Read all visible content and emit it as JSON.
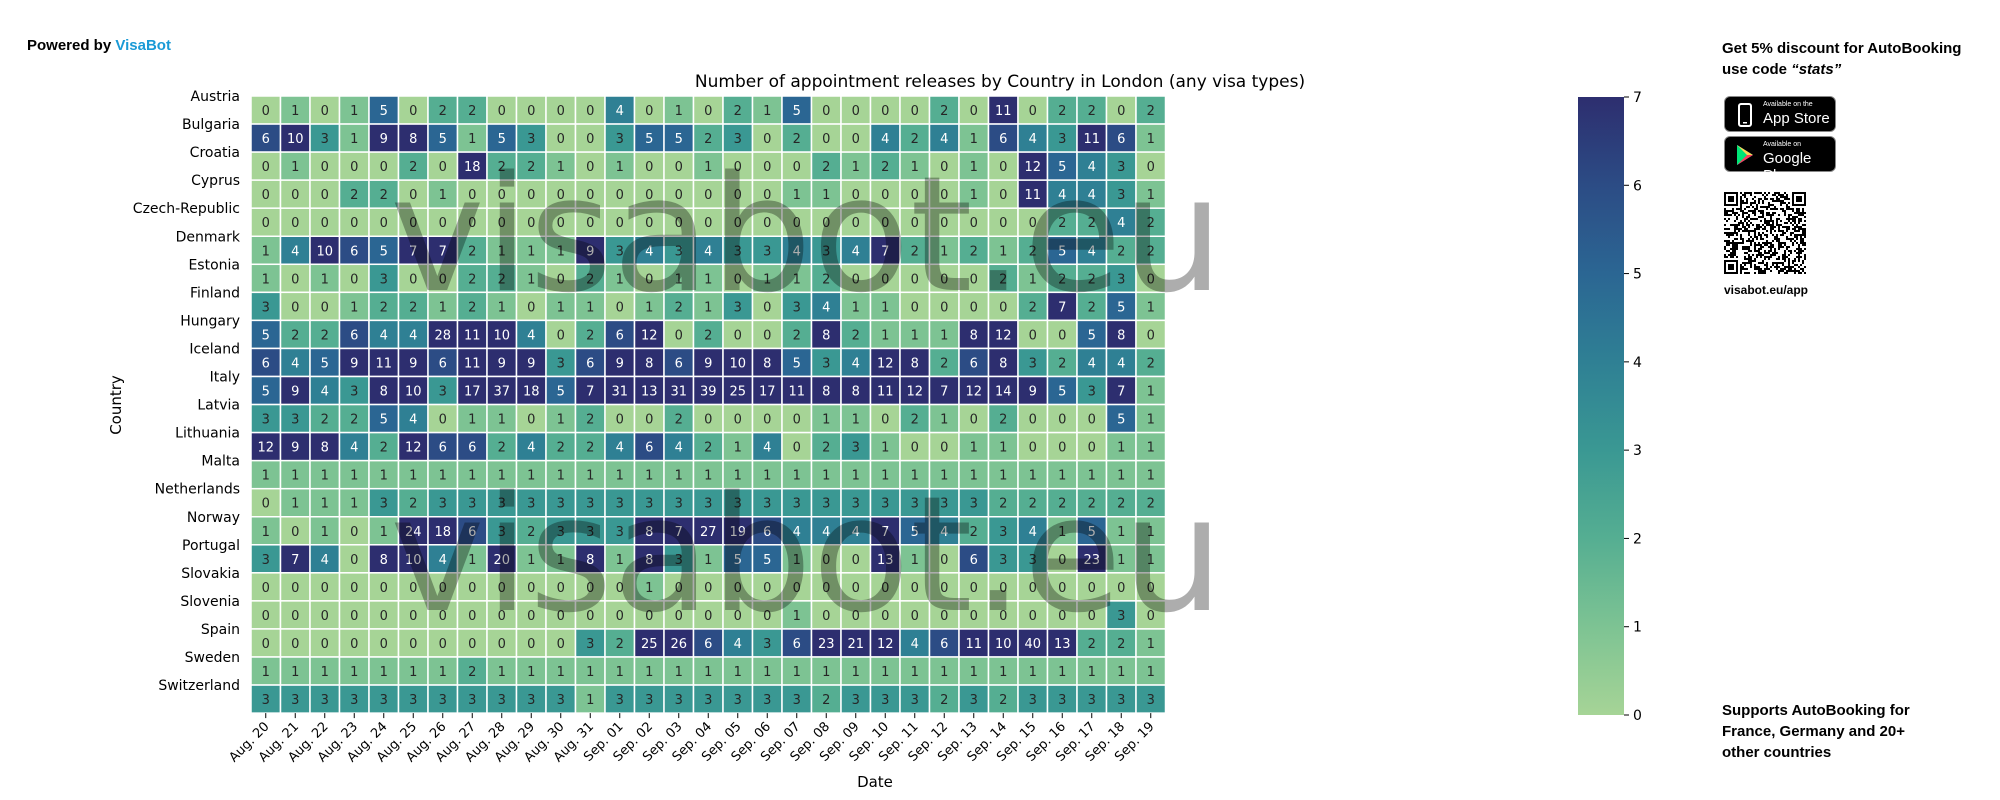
{
  "header": {
    "powered_prefix": "Powered by",
    "powered_brand": "VisaBot"
  },
  "watermark": "visabot.eu",
  "promo": {
    "line1_prefix": "Get 5% discount for ",
    "line1_bold": "AutoBooking",
    "line2_prefix": "use code ",
    "code": "“stats”",
    "appstore_small": "Available on the",
    "appstore_big": "App Store",
    "googleplay_small": "Available on",
    "googleplay_big": "Google Play",
    "qr_caption": "visabot.eu/app",
    "supports_prefix": "Supports ",
    "supports_bold": "AutoBooking",
    "supports_rest": " for France, Germany and 20+ other countries"
  },
  "colors": {
    "low": "#a6d496",
    "mid": "#2f8e94",
    "high": "#2d2e6f",
    "accent": "#1a9ad6"
  },
  "chart_data": {
    "type": "heatmap",
    "title": "Number of appointment releases by Country in London (any visa types)",
    "xlabel": "Date",
    "ylabel": "Country",
    "colorbar": {
      "min": 0,
      "max": 7,
      "ticks": [
        0,
        1,
        2,
        3,
        4,
        5,
        6,
        7
      ]
    },
    "x": [
      "Aug. 20",
      "Aug. 21",
      "Aug. 22",
      "Aug. 23",
      "Aug. 24",
      "Aug. 25",
      "Aug. 26",
      "Aug. 27",
      "Aug. 28",
      "Aug. 29",
      "Aug. 30",
      "Aug. 31",
      "Sep. 01",
      "Sep. 02",
      "Sep. 03",
      "Sep. 04",
      "Sep. 05",
      "Sep. 06",
      "Sep. 07",
      "Sep. 08",
      "Sep. 09",
      "Sep. 10",
      "Sep. 11",
      "Sep. 12",
      "Sep. 13",
      "Sep. 14",
      "Sep. 15",
      "Sep. 16",
      "Sep. 17",
      "Sep. 18",
      "Sep. 19"
    ],
    "y": [
      "Austria",
      "Bulgaria",
      "Croatia",
      "Cyprus",
      "Czech-Republic",
      "Denmark",
      "Estonia",
      "Finland",
      "Hungary",
      "Iceland",
      "Italy",
      "Latvia",
      "Lithuania",
      "Malta",
      "Netherlands",
      "Norway",
      "Portugal",
      "Slovakia",
      "Slovenia",
      "Spain",
      "Sweden",
      "Switzerland"
    ],
    "values": [
      [
        0,
        1,
        0,
        1,
        5,
        0,
        2,
        2,
        0,
        0,
        0,
        0,
        4,
        0,
        1,
        0,
        2,
        1,
        5,
        0,
        0,
        0,
        0,
        2,
        0,
        11,
        0,
        2,
        2,
        0,
        2
      ],
      [
        6,
        10,
        3,
        1,
        9,
        8,
        5,
        1,
        5,
        3,
        0,
        0,
        3,
        5,
        5,
        2,
        3,
        0,
        2,
        0,
        0,
        4,
        2,
        4,
        1,
        6,
        4,
        3,
        11,
        6,
        1
      ],
      [
        0,
        1,
        0,
        0,
        0,
        2,
        0,
        18,
        2,
        2,
        1,
        0,
        1,
        0,
        0,
        1,
        0,
        0,
        0,
        2,
        1,
        2,
        1,
        0,
        1,
        0,
        12,
        5,
        4,
        3,
        0
      ],
      [
        0,
        0,
        0,
        2,
        2,
        0,
        1,
        0,
        0,
        0,
        0,
        0,
        0,
        0,
        0,
        0,
        0,
        0,
        1,
        1,
        0,
        0,
        0,
        0,
        1,
        0,
        11,
        4,
        4,
        3,
        1
      ],
      [
        0,
        0,
        0,
        0,
        0,
        0,
        0,
        0,
        0,
        0,
        0,
        0,
        0,
        0,
        0,
        0,
        0,
        0,
        0,
        0,
        0,
        0,
        0,
        0,
        0,
        0,
        0,
        2,
        2,
        4,
        2
      ],
      [
        1,
        4,
        10,
        6,
        5,
        7,
        7,
        2,
        1,
        1,
        1,
        9,
        3,
        4,
        3,
        4,
        3,
        3,
        4,
        3,
        4,
        7,
        2,
        1,
        2,
        1,
        2,
        5,
        4,
        2,
        2
      ],
      [
        1,
        0,
        1,
        0,
        3,
        0,
        0,
        2,
        2,
        1,
        0,
        2,
        1,
        0,
        1,
        1,
        0,
        1,
        1,
        2,
        0,
        0,
        0,
        0,
        0,
        2,
        1,
        2,
        2,
        3,
        0
      ],
      [
        3,
        0,
        0,
        1,
        2,
        2,
        1,
        2,
        1,
        0,
        1,
        1,
        0,
        1,
        2,
        1,
        3,
        0,
        3,
        4,
        1,
        1,
        0,
        0,
        0,
        0,
        2,
        7,
        2,
        5,
        1
      ],
      [
        5,
        2,
        2,
        6,
        4,
        4,
        28,
        11,
        10,
        4,
        0,
        2,
        6,
        12,
        0,
        2,
        0,
        0,
        2,
        8,
        2,
        1,
        1,
        1,
        8,
        12,
        0,
        0,
        5,
        8,
        0
      ],
      [
        6,
        4,
        5,
        9,
        11,
        9,
        6,
        11,
        9,
        9,
        3,
        6,
        9,
        8,
        6,
        9,
        10,
        8,
        5,
        3,
        4,
        12,
        8,
        2,
        6,
        8,
        3,
        2,
        4,
        4,
        2
      ],
      [
        5,
        9,
        4,
        3,
        8,
        10,
        3,
        17,
        37,
        18,
        5,
        7,
        31,
        13,
        31,
        39,
        25,
        17,
        11,
        8,
        8,
        11,
        12,
        7,
        12,
        14,
        9,
        5,
        3,
        7,
        1
      ],
      [
        3,
        3,
        2,
        2,
        5,
        4,
        0,
        1,
        1,
        0,
        1,
        2,
        0,
        0,
        2,
        0,
        0,
        0,
        0,
        1,
        1,
        0,
        2,
        1,
        0,
        2,
        0,
        0,
        0,
        5,
        1
      ],
      [
        12,
        9,
        8,
        4,
        2,
        12,
        6,
        6,
        2,
        4,
        2,
        2,
        4,
        6,
        4,
        2,
        1,
        4,
        0,
        2,
        3,
        1,
        0,
        0,
        1,
        1,
        0,
        0,
        0,
        1,
        1
      ],
      [
        1,
        1,
        1,
        1,
        1,
        1,
        1,
        1,
        1,
        1,
        1,
        1,
        1,
        1,
        1,
        1,
        1,
        1,
        1,
        1,
        1,
        1,
        1,
        1,
        1,
        1,
        1,
        1,
        1,
        1,
        1
      ],
      [
        0,
        1,
        1,
        1,
        3,
        2,
        3,
        3,
        3,
        3,
        3,
        3,
        3,
        3,
        3,
        3,
        3,
        3,
        3,
        3,
        3,
        3,
        3,
        3,
        3,
        2,
        2,
        2,
        2,
        2,
        2
      ],
      [
        1,
        0,
        1,
        0,
        1,
        24,
        18,
        6,
        3,
        2,
        3,
        3,
        3,
        8,
        7,
        27,
        19,
        6,
        4,
        4,
        4,
        7,
        5,
        4,
        2,
        3,
        4,
        1,
        5,
        1,
        1
      ],
      [
        3,
        7,
        4,
        0,
        8,
        10,
        4,
        1,
        20,
        1,
        1,
        8,
        1,
        8,
        3,
        1,
        5,
        5,
        1,
        0,
        0,
        13,
        1,
        0,
        6,
        3,
        3,
        0,
        23,
        1,
        1
      ],
      [
        0,
        0,
        0,
        0,
        0,
        0,
        0,
        0,
        0,
        0,
        0,
        0,
        0,
        1,
        0,
        0,
        0,
        0,
        0,
        0,
        0,
        0,
        0,
        0,
        0,
        0,
        0,
        0,
        0,
        0,
        0
      ],
      [
        0,
        0,
        0,
        0,
        0,
        0,
        0,
        0,
        0,
        0,
        0,
        0,
        0,
        0,
        0,
        0,
        0,
        0,
        1,
        0,
        0,
        0,
        0,
        0,
        0,
        0,
        0,
        0,
        0,
        3,
        0
      ],
      [
        0,
        0,
        0,
        0,
        0,
        0,
        0,
        0,
        0,
        0,
        0,
        3,
        2,
        25,
        26,
        6,
        4,
        3,
        6,
        23,
        21,
        12,
        4,
        6,
        11,
        10,
        40,
        13,
        2,
        2,
        1
      ],
      [
        1,
        1,
        1,
        1,
        1,
        1,
        1,
        2,
        1,
        1,
        1,
        1,
        1,
        1,
        1,
        1,
        1,
        1,
        1,
        1,
        1,
        1,
        1,
        1,
        1,
        1,
        1,
        1,
        1,
        1,
        1
      ],
      [
        3,
        3,
        3,
        3,
        3,
        3,
        3,
        3,
        3,
        3,
        3,
        1,
        3,
        3,
        3,
        3,
        3,
        3,
        3,
        2,
        3,
        3,
        3,
        2,
        3,
        2,
        3,
        3,
        3,
        3,
        3
      ]
    ]
  }
}
